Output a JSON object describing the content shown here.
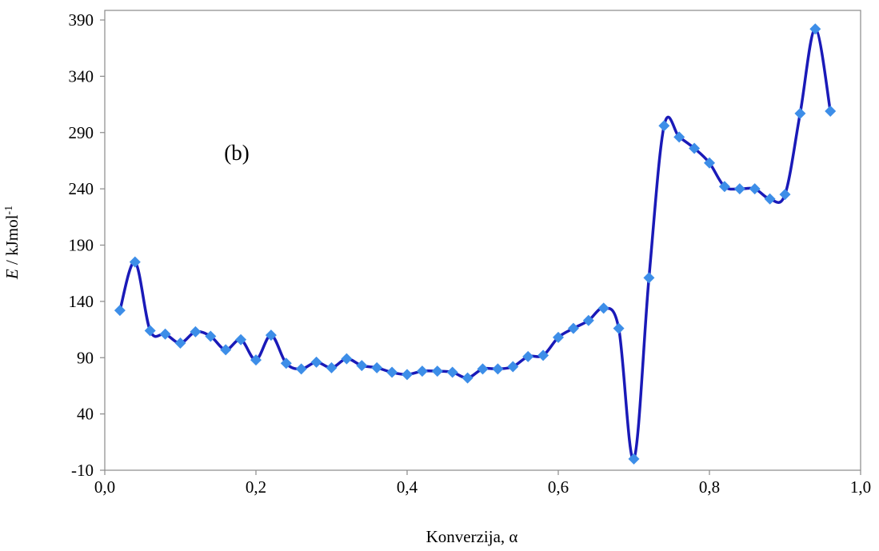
{
  "chart_data": {
    "type": "line",
    "xlabel": "Konverzija, α",
    "ylabel": {
      "var": "E",
      "rest": " / kJmol",
      "sup": "-1"
    },
    "annotation": "(b)",
    "xlim": [
      0.0,
      1.0
    ],
    "ylim": [
      -10,
      400
    ],
    "xticks": [
      "0,0",
      "0,2",
      "0,4",
      "0,6",
      "0,8",
      "1,0"
    ],
    "xtick_values": [
      0.0,
      0.2,
      0.4,
      0.6,
      0.8,
      1.0
    ],
    "yticks": [
      -10,
      40,
      90,
      140,
      190,
      240,
      290,
      340,
      390
    ],
    "grid": false,
    "series": [
      {
        "line_color": "#1a1ab8",
        "marker_color": "#3d8ee8",
        "marker": "diamond",
        "points": [
          [
            0.02,
            132
          ],
          [
            0.04,
            175
          ],
          [
            0.06,
            114
          ],
          [
            0.08,
            111
          ],
          [
            0.1,
            103
          ],
          [
            0.12,
            113
          ],
          [
            0.14,
            109
          ],
          [
            0.16,
            97
          ],
          [
            0.18,
            106
          ],
          [
            0.2,
            88
          ],
          [
            0.22,
            110
          ],
          [
            0.24,
            85
          ],
          [
            0.26,
            80
          ],
          [
            0.28,
            86
          ],
          [
            0.3,
            81
          ],
          [
            0.32,
            89
          ],
          [
            0.34,
            83
          ],
          [
            0.36,
            81
          ],
          [
            0.38,
            77
          ],
          [
            0.4,
            75
          ],
          [
            0.42,
            78
          ],
          [
            0.44,
            78
          ],
          [
            0.46,
            77
          ],
          [
            0.48,
            72
          ],
          [
            0.5,
            80
          ],
          [
            0.52,
            80
          ],
          [
            0.54,
            82
          ],
          [
            0.56,
            91
          ],
          [
            0.58,
            92
          ],
          [
            0.6,
            108
          ],
          [
            0.62,
            116
          ],
          [
            0.64,
            123
          ],
          [
            0.66,
            134
          ],
          [
            0.68,
            116
          ],
          [
            0.7,
            0
          ],
          [
            0.72,
            161
          ],
          [
            0.74,
            296
          ],
          [
            0.76,
            286
          ],
          [
            0.78,
            276
          ],
          [
            0.8,
            263
          ],
          [
            0.82,
            242
          ],
          [
            0.84,
            240
          ],
          [
            0.86,
            240
          ],
          [
            0.88,
            231
          ],
          [
            0.9,
            235
          ],
          [
            0.92,
            307
          ],
          [
            0.94,
            382
          ],
          [
            0.96,
            309
          ]
        ]
      }
    ]
  }
}
